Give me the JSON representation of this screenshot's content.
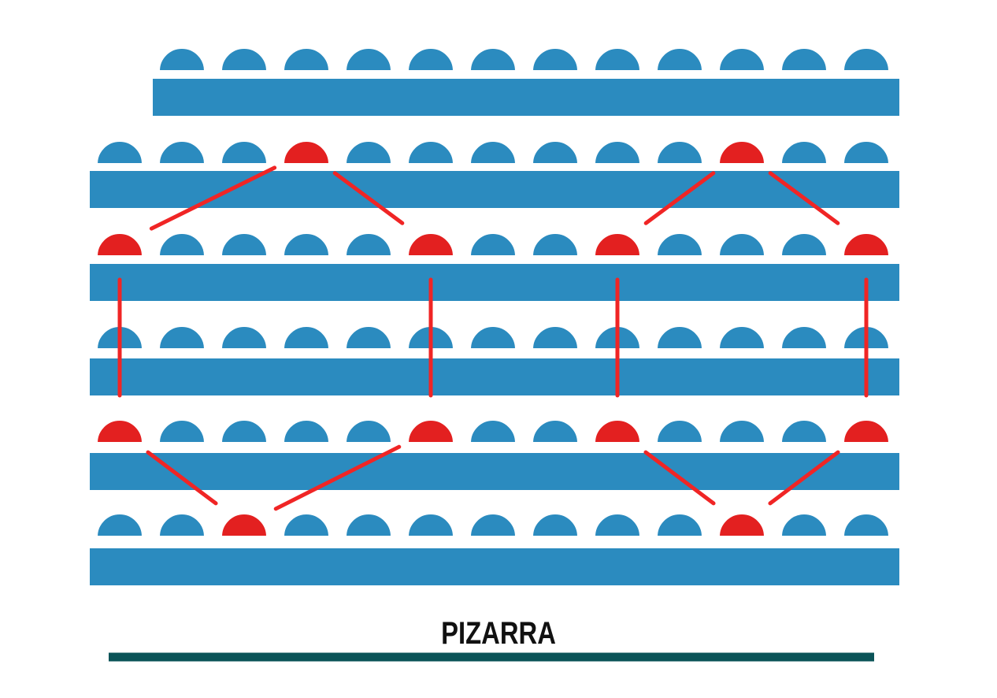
{
  "board": {
    "label": "PIZARRA"
  },
  "colors": {
    "seat": "#2b8bbf",
    "desk": "#2b8bbf",
    "marked_seat": "#e32020",
    "connector": "#f02525",
    "board_line": "#0b5458",
    "label": "#111111"
  },
  "seating": {
    "rows": [
      {
        "seats": 12,
        "offset": 1
      },
      {
        "seats": 13,
        "offset": 0
      },
      {
        "seats": 13,
        "offset": 0
      },
      {
        "seats": 13,
        "offset": 0
      },
      {
        "seats": 13,
        "offset": 0
      },
      {
        "seats": 13,
        "offset": 0
      }
    ],
    "marked": [
      {
        "row": 2,
        "seat": 4
      },
      {
        "row": 2,
        "seat": 11
      },
      {
        "row": 3,
        "seat": 1
      },
      {
        "row": 3,
        "seat": 6
      },
      {
        "row": 3,
        "seat": 9
      },
      {
        "row": 3,
        "seat": 13
      },
      {
        "row": 5,
        "seat": 1
      },
      {
        "row": 5,
        "seat": 6
      },
      {
        "row": 5,
        "seat": 9
      },
      {
        "row": 5,
        "seat": 13
      },
      {
        "row": 6,
        "seat": 3
      },
      {
        "row": 6,
        "seat": 11
      }
    ],
    "connections": [
      [
        {
          "row": 2,
          "seat": 4
        },
        {
          "row": 3,
          "seat": 1
        }
      ],
      [
        {
          "row": 2,
          "seat": 4
        },
        {
          "row": 3,
          "seat": 6
        }
      ],
      [
        {
          "row": 2,
          "seat": 11
        },
        {
          "row": 3,
          "seat": 9
        }
      ],
      [
        {
          "row": 2,
          "seat": 11
        },
        {
          "row": 3,
          "seat": 13
        }
      ],
      [
        {
          "row": 3,
          "seat": 1
        },
        {
          "row": 5,
          "seat": 1
        }
      ],
      [
        {
          "row": 3,
          "seat": 6
        },
        {
          "row": 5,
          "seat": 6
        }
      ],
      [
        {
          "row": 3,
          "seat": 9
        },
        {
          "row": 5,
          "seat": 9
        }
      ],
      [
        {
          "row": 3,
          "seat": 13
        },
        {
          "row": 5,
          "seat": 13
        }
      ],
      [
        {
          "row": 5,
          "seat": 1
        },
        {
          "row": 6,
          "seat": 3
        }
      ],
      [
        {
          "row": 5,
          "seat": 6
        },
        {
          "row": 6,
          "seat": 3
        }
      ],
      [
        {
          "row": 5,
          "seat": 9
        },
        {
          "row": 6,
          "seat": 11
        }
      ],
      [
        {
          "row": 5,
          "seat": 13
        },
        {
          "row": 6,
          "seat": 11
        }
      ]
    ]
  }
}
